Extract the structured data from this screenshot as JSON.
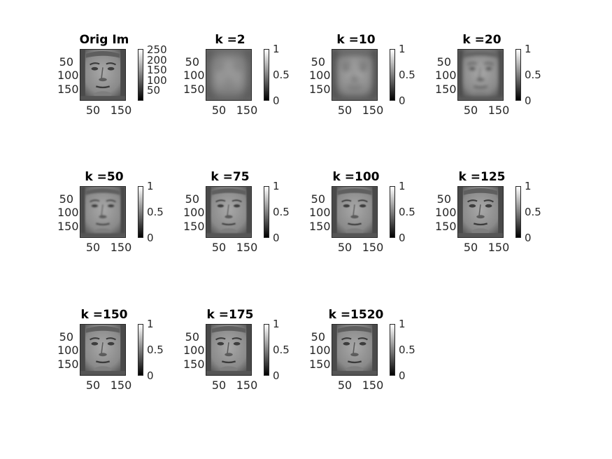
{
  "colors": {
    "text": "#262626",
    "title": "#000000",
    "background": "#ffffff",
    "colormap": "gray"
  },
  "panels": [
    {
      "title": "Orig Im",
      "blur": 0,
      "yticks": [
        "50",
        "100",
        "150"
      ],
      "xticks": [
        "50",
        "150"
      ],
      "cbar_ticks": [
        "250",
        "200",
        "150",
        "100",
        "50"
      ],
      "cbar_range": [
        0,
        255
      ]
    },
    {
      "title": "k =2",
      "blur": 6,
      "yticks": [
        "50",
        "100",
        "150"
      ],
      "xticks": [
        "50",
        "150"
      ],
      "cbar_ticks": [
        "1",
        "0.5",
        "0"
      ],
      "cbar_range": [
        0,
        1
      ]
    },
    {
      "title": "k =10",
      "blur": 4,
      "yticks": [
        "50",
        "100",
        "150"
      ],
      "xticks": [
        "50",
        "150"
      ],
      "cbar_ticks": [
        "1",
        "0.5",
        "0"
      ],
      "cbar_range": [
        0,
        1
      ]
    },
    {
      "title": "k =20",
      "blur": 2.5,
      "yticks": [
        "50",
        "100",
        "150"
      ],
      "xticks": [
        "50",
        "150"
      ],
      "cbar_ticks": [
        "1",
        "0.5",
        "0"
      ],
      "cbar_range": [
        0,
        1
      ]
    },
    {
      "title": "k =50",
      "blur": 1.2,
      "yticks": [
        "50",
        "100",
        "150"
      ],
      "xticks": [
        "50",
        "150"
      ],
      "cbar_ticks": [
        "1",
        "0.5",
        "0"
      ],
      "cbar_range": [
        0,
        1
      ]
    },
    {
      "title": "k =75",
      "blur": 0.8,
      "yticks": [
        "50",
        "100",
        "150"
      ],
      "xticks": [
        "50",
        "150"
      ],
      "cbar_ticks": [
        "1",
        "0.5",
        "0"
      ],
      "cbar_range": [
        0,
        1
      ]
    },
    {
      "title": "k =100",
      "blur": 0.5,
      "yticks": [
        "50",
        "100",
        "150"
      ],
      "xticks": [
        "50",
        "150"
      ],
      "cbar_ticks": [
        "1",
        "0.5",
        "0"
      ],
      "cbar_range": [
        0,
        1
      ]
    },
    {
      "title": "k =125",
      "blur": 0.4,
      "yticks": [
        "50",
        "100",
        "150"
      ],
      "xticks": [
        "50",
        "150"
      ],
      "cbar_ticks": [
        "1",
        "0.5",
        "0"
      ],
      "cbar_range": [
        0,
        1
      ]
    },
    {
      "title": "k =150",
      "blur": 0.3,
      "yticks": [
        "50",
        "100",
        "150"
      ],
      "xticks": [
        "50",
        "150"
      ],
      "cbar_ticks": [
        "1",
        "0.5",
        "0"
      ],
      "cbar_range": [
        0,
        1
      ]
    },
    {
      "title": "k =175",
      "blur": 0.2,
      "yticks": [
        "50",
        "100",
        "150"
      ],
      "xticks": [
        "50",
        "150"
      ],
      "cbar_ticks": [
        "1",
        "0.5",
        "0"
      ],
      "cbar_range": [
        0,
        1
      ]
    },
    {
      "title": "k =1520",
      "blur": 0,
      "yticks": [
        "50",
        "100",
        "150"
      ],
      "xticks": [
        "50",
        "150"
      ],
      "cbar_ticks": [
        "1",
        "0.5",
        "0"
      ],
      "cbar_range": [
        0,
        1
      ]
    }
  ]
}
